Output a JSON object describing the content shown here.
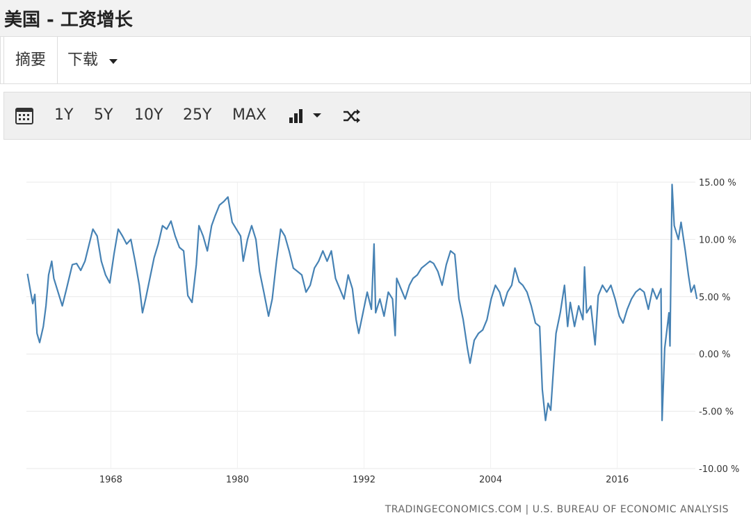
{
  "header": {
    "title": "美国 - 工资增长"
  },
  "tabs": [
    "摘要",
    "下载"
  ],
  "toolbar": {
    "ranges": [
      "1Y",
      "5Y",
      "10Y",
      "25Y",
      "MAX"
    ]
  },
  "chart_data": {
    "type": "line",
    "x": [
      1960.1,
      1960.4,
      1960.6,
      1960.8,
      1961.0,
      1961.25,
      1961.6,
      1961.85,
      1962.1,
      1962.4,
      1962.6,
      1963.0,
      1963.4,
      1963.8,
      1964.35,
      1964.75,
      1965.15,
      1965.55,
      1965.95,
      1966.3,
      1966.7,
      1967.1,
      1967.5,
      1967.9,
      1968.3,
      1968.7,
      1969.1,
      1969.5,
      1969.9,
      1970.3,
      1970.7,
      1971.0,
      1971.3,
      1971.7,
      1972.1,
      1972.5,
      1972.9,
      1973.3,
      1973.7,
      1974.1,
      1974.5,
      1974.9,
      1975.3,
      1975.7,
      1976.1,
      1976.35,
      1976.75,
      1977.15,
      1977.55,
      1977.9,
      1978.3,
      1978.7,
      1979.1,
      1979.5,
      1979.9,
      1980.3,
      1980.55,
      1980.95,
      1981.35,
      1981.75,
      1982.1,
      1982.5,
      1982.95,
      1983.3,
      1983.7,
      1984.1,
      1984.5,
      1984.9,
      1985.3,
      1985.7,
      1986.1,
      1986.5,
      1986.9,
      1987.3,
      1987.7,
      1988.1,
      1988.5,
      1988.9,
      1989.3,
      1989.7,
      1990.1,
      1990.5,
      1990.9,
      1991.25,
      1991.5,
      1991.9,
      1992.3,
      1992.7,
      1992.95,
      1993.1,
      1993.5,
      1993.9,
      1994.3,
      1994.7,
      1994.95,
      1995.1,
      1995.5,
      1995.9,
      1996.3,
      1996.65,
      1997.05,
      1997.45,
      1997.85,
      1998.25,
      1998.6,
      1999.0,
      1999.4,
      1999.8,
      2000.2,
      2000.6,
      2001.0,
      2001.4,
      2001.8,
      2002.05,
      2002.45,
      2002.85,
      2003.25,
      2003.65,
      2004.05,
      2004.45,
      2004.85,
      2005.2,
      2005.6,
      2006.0,
      2006.3,
      2006.7,
      2007.05,
      2007.45,
      2007.85,
      2008.25,
      2008.65,
      2008.9,
      2009.2,
      2009.45,
      2009.7,
      2010.0,
      2010.2,
      2010.6,
      2011.0,
      2011.3,
      2011.55,
      2011.95,
      2012.35,
      2012.75,
      2012.9,
      2013.1,
      2013.5,
      2013.9,
      2014.2,
      2014.6,
      2015.0,
      2015.4,
      2015.8,
      2016.2,
      2016.55,
      2016.95,
      2017.35,
      2017.75,
      2018.15,
      2018.55,
      2018.95,
      2019.35,
      2019.75,
      2020.15,
      2020.25,
      2020.5,
      2020.9,
      2021.0,
      2021.2,
      2021.4,
      2021.8,
      2022.05,
      2022.45,
      2022.75,
      2023.0,
      2023.3,
      2023.55
    ],
    "values": [
      7.0,
      5.4,
      4.4,
      5.2,
      1.8,
      1.0,
      2.4,
      4.2,
      6.9,
      8.1,
      6.6,
      5.4,
      4.2,
      5.7,
      7.8,
      7.9,
      7.3,
      8.1,
      9.6,
      10.9,
      10.3,
      8.1,
      6.9,
      6.2,
      8.7,
      10.9,
      10.3,
      9.6,
      10.0,
      8.1,
      6.0,
      3.6,
      4.8,
      6.6,
      8.4,
      9.6,
      11.2,
      10.9,
      11.6,
      10.3,
      9.3,
      9.0,
      5.1,
      4.5,
      7.8,
      11.2,
      10.3,
      9.0,
      11.2,
      12.1,
      13.0,
      13.3,
      13.7,
      11.5,
      10.9,
      10.3,
      8.1,
      10.0,
      11.2,
      10.0,
      7.2,
      5.4,
      3.3,
      4.8,
      8.1,
      10.9,
      10.3,
      9.0,
      7.5,
      7.2,
      6.9,
      5.4,
      6.0,
      7.5,
      8.1,
      9.0,
      8.1,
      9.0,
      6.6,
      5.7,
      4.8,
      6.9,
      5.7,
      3.0,
      1.8,
      3.6,
      5.4,
      3.9,
      9.6,
      3.6,
      4.8,
      3.3,
      5.4,
      4.8,
      1.6,
      6.6,
      5.7,
      4.8,
      6.0,
      6.6,
      6.9,
      7.5,
      7.8,
      8.1,
      7.9,
      7.2,
      6.0,
      7.8,
      9.0,
      8.7,
      4.8,
      3.0,
      0.5,
      -0.8,
      1.2,
      1.8,
      2.1,
      3.0,
      4.8,
      6.0,
      5.4,
      4.2,
      5.4,
      6.0,
      7.5,
      6.3,
      6.0,
      5.4,
      4.2,
      2.7,
      2.4,
      -3.1,
      -5.8,
      -4.3,
      -4.9,
      -0.7,
      1.8,
      3.6,
      6.0,
      2.4,
      4.5,
      2.4,
      4.2,
      3.0,
      7.6,
      3.6,
      4.2,
      0.8,
      5.1,
      6.0,
      5.4,
      6.0,
      4.8,
      3.3,
      2.7,
      3.9,
      4.8,
      5.4,
      5.7,
      5.4,
      3.9,
      5.7,
      4.8,
      5.7,
      -5.8,
      0.5,
      3.6,
      0.7,
      14.8,
      11.2,
      10.0,
      11.5,
      9.0,
      6.9,
      5.4,
      6.0,
      4.8
    ],
    "color": "#4682b4",
    "xlim": [
      1960,
      2024
    ],
    "xticks": [
      1968,
      1980,
      1992,
      2004,
      2016
    ],
    "ylim": [
      -10,
      15
    ],
    "yticks": [
      {
        "value": 15,
        "label": "15.00 %"
      },
      {
        "value": 10,
        "label": "10.00 %"
      },
      {
        "value": 5,
        "label": "5.00 %"
      },
      {
        "value": 0,
        "label": "0.00 %"
      },
      {
        "value": -5,
        "label": "-5.00 %"
      },
      {
        "value": -10,
        "label": "-10.00 %"
      }
    ],
    "grid": true,
    "source": "TRADINGECONOMICS.COM | U.S. BUREAU OF ECONOMIC ANALYSIS"
  }
}
